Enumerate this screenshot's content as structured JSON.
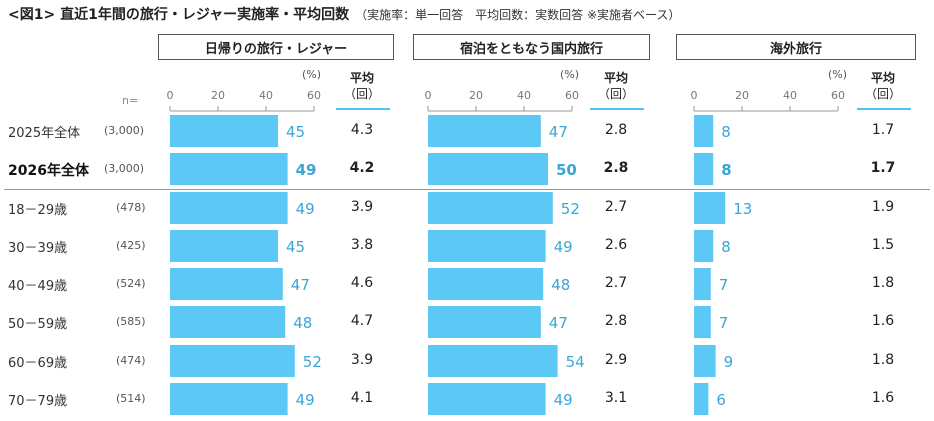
{
  "title": "<図1> 直近1年間の旅行・レジャー実施率・平均回数",
  "subtitle": "（実施率：単一回答　平均回数：実数回答 ※実施者ベース）",
  "n_label": "n=",
  "percent_unit": "(%)",
  "avg_header": "平均",
  "avg_unit": "（回）",
  "colors": {
    "bar": "#5bc8f5",
    "value_text": "#3aa6d8",
    "axis": "#999999"
  },
  "rows": [
    {
      "label": "2025年全体",
      "n": "(3,000)",
      "bold": false
    },
    {
      "label": "2026年全体",
      "n": "(3,000)",
      "bold": true
    },
    {
      "label": "18－29歳",
      "n": "(478)",
      "bold": false
    },
    {
      "label": "30－39歳",
      "n": "(425)",
      "bold": false
    },
    {
      "label": "40－49歳",
      "n": "(524)",
      "bold": false
    },
    {
      "label": "50－59歳",
      "n": "(585)",
      "bold": false
    },
    {
      "label": "60－69歳",
      "n": "(474)",
      "bold": false
    },
    {
      "label": "70－79歳",
      "n": "(514)",
      "bold": false
    }
  ],
  "chart_data": [
    {
      "type": "bar",
      "title": "日帰りの旅行・レジャー",
      "xlim": [
        0,
        60
      ],
      "ticks": [
        0,
        20,
        40,
        60
      ],
      "values": [
        45,
        49,
        49,
        45,
        47,
        48,
        52,
        49
      ],
      "averages": [
        "4.3",
        "4.2",
        "3.9",
        "3.8",
        "4.6",
        "4.7",
        "3.9",
        "4.1"
      ]
    },
    {
      "type": "bar",
      "title": "宿泊をともなう国内旅行",
      "xlim": [
        0,
        60
      ],
      "ticks": [
        0,
        20,
        40,
        60
      ],
      "values": [
        47,
        50,
        52,
        49,
        48,
        47,
        54,
        49
      ],
      "averages": [
        "2.8",
        "2.8",
        "2.7",
        "2.6",
        "2.7",
        "2.8",
        "2.9",
        "3.1"
      ]
    },
    {
      "type": "bar",
      "title": "海外旅行",
      "xlim": [
        0,
        60
      ],
      "ticks": [
        0,
        20,
        40,
        60
      ],
      "values": [
        8,
        8,
        13,
        8,
        7,
        7,
        9,
        6
      ],
      "averages": [
        "1.7",
        "1.7",
        "1.9",
        "1.5",
        "1.8",
        "1.6",
        "1.8",
        "1.6"
      ]
    }
  ]
}
